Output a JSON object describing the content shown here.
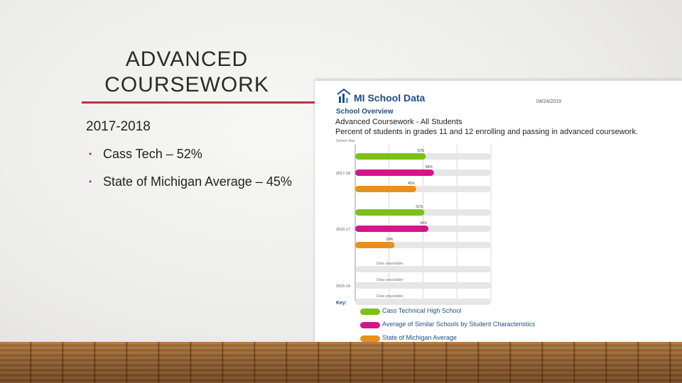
{
  "slide": {
    "title": "ADVANCED COURSEWORK",
    "year_heading": "2017-2018",
    "bullets": [
      "Cass Tech – 52%",
      "State of Michigan Average – 45%"
    ]
  },
  "panel": {
    "brand": "MI School Data",
    "date": "04/24/2019",
    "section": "School Overview"
  },
  "chart_data": {
    "type": "bar",
    "orientation": "horizontal",
    "title": "Advanced Coursework - All Students",
    "subtitle": "Percent of students in grades 11 and 12 enrolling and passing in advanced coursework.",
    "axis_label": "School Year",
    "xlim": [
      0,
      100
    ],
    "grid": true,
    "unavailable_text": "Data unavailable",
    "categories": [
      "2017-18",
      "2016-17",
      "2015-16"
    ],
    "series": [
      {
        "name": "Cass Technical High School",
        "color": "#7cc118",
        "values": [
          52,
          51,
          null
        ]
      },
      {
        "name": "Average of Similar Schools by Student Characteristics",
        "color": "#d4158a",
        "values": [
          58,
          54,
          null
        ]
      },
      {
        "name": "State of Michigan Average",
        "color": "#e8901e",
        "values": [
          45,
          29,
          null
        ]
      }
    ],
    "data_labels": [
      [
        "52%",
        "58%",
        "45%"
      ],
      [
        "51%",
        "54%",
        "29%"
      ],
      [
        "",
        "",
        ""
      ]
    ],
    "legend_position": "bottom",
    "legend_title": "Key:"
  }
}
